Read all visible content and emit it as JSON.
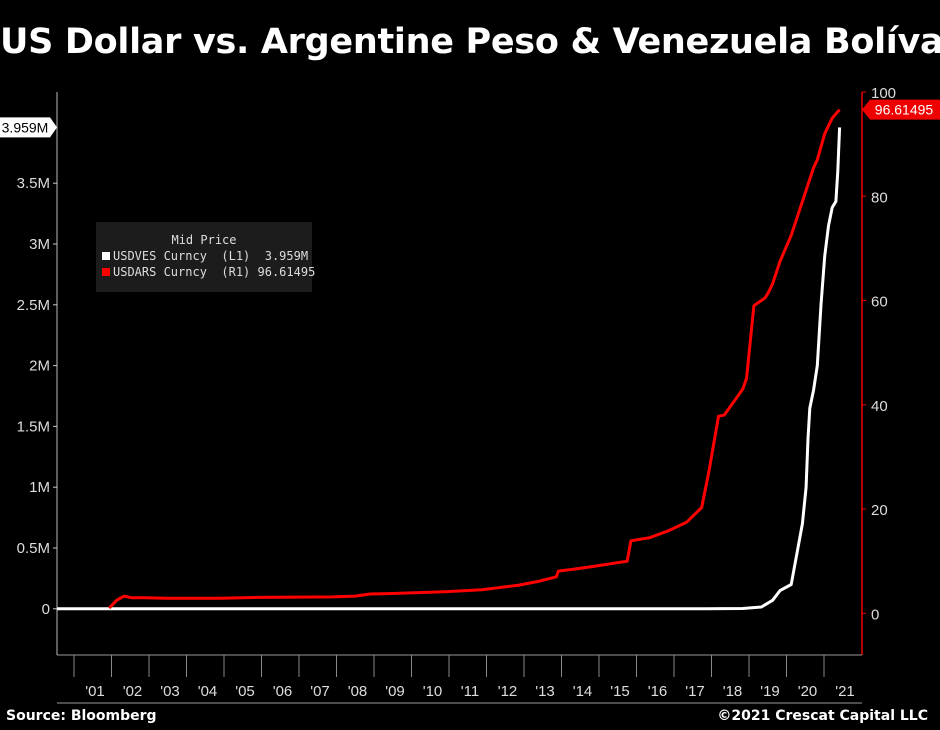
{
  "title": "US Dollar vs. Argentine Peso & Venezuela Bolívar",
  "source": "Source: Bloomberg",
  "copyright": "©2021 Crescat Capital LLC",
  "legend": {
    "header": "Mid Price",
    "items": [
      {
        "label": "USDVES Curncy  (L1)  3.959M",
        "color": "#ffffff"
      },
      {
        "label": "USDARS Curncy  (R1) 96.61495",
        "color": "#ff0000"
      }
    ]
  },
  "badges": {
    "left": "3.959M",
    "right": "96.61495"
  },
  "chart_data": {
    "type": "line",
    "x_tick_labels": [
      "'01",
      "'02",
      "'03",
      "'04",
      "'05",
      "'06",
      "'07",
      "'08",
      "'09",
      "'10",
      "'11",
      "'12",
      "'13",
      "'14",
      "'15",
      "'16",
      "'17",
      "'18",
      "'19",
      "'20",
      "'21"
    ],
    "left_axis": {
      "ticks": [
        0,
        500000,
        1000000,
        1500000,
        2000000,
        2500000,
        3000000,
        3500000
      ],
      "tick_labels": [
        "0",
        "0.5M",
        "1M",
        "1.5M",
        "2M",
        "2.5M",
        "3M",
        "3.5M"
      ],
      "range": [
        -380000,
        4250000
      ]
    },
    "right_axis": {
      "ticks": [
        0,
        20,
        40,
        60,
        80,
        100
      ],
      "tick_labels": [
        "0",
        "20",
        "40",
        "60",
        "80",
        "100"
      ],
      "range": [
        -8,
        100
      ]
    },
    "x_range": [
      2000.6,
      2022.2
    ],
    "series": [
      {
        "name": "USDVES Curncy",
        "axis": "left",
        "color": "#ffffff",
        "x": [
          2000.6,
          2018.0,
          2019.0,
          2019.5,
          2019.8,
          2020.0,
          2020.3,
          2020.45,
          2020.6,
          2020.7,
          2020.75,
          2020.8,
          2020.9,
          2021.0,
          2021.1,
          2021.2,
          2021.3,
          2021.4,
          2021.5,
          2021.55,
          2021.6
        ],
        "values": [
          0,
          0,
          2000,
          15000,
          70000,
          150000,
          200000,
          450000,
          700000,
          1000000,
          1400000,
          1650000,
          1800000,
          2000000,
          2500000,
          2900000,
          3150000,
          3300000,
          3350000,
          3600000,
          3959000
        ]
      },
      {
        "name": "USDARS Curncy",
        "axis": "right",
        "color": "#ff0000",
        "x": [
          2002.0,
          2002.2,
          2002.4,
          2002.6,
          2003.0,
          2003.5,
          2004.0,
          2005.0,
          2006.0,
          2007.0,
          2008.0,
          2008.6,
          2009.0,
          2009.6,
          2010.0,
          2011.0,
          2012.0,
          2013.0,
          2013.5,
          2014.0,
          2014.05,
          2014.5,
          2015.0,
          2015.9,
          2016.0,
          2016.5,
          2017.0,
          2017.5,
          2017.9,
          2018.1,
          2018.35,
          2018.5,
          2018.8,
          2019.0,
          2019.1,
          2019.3,
          2019.6,
          2019.7,
          2019.8,
          2020.0,
          2020.3,
          2020.6,
          2020.9,
          2021.0,
          2021.2,
          2021.4,
          2021.6
        ],
        "values": [
          1,
          2.5,
          3.3,
          3.0,
          3.0,
          2.9,
          2.9,
          2.9,
          3.05,
          3.1,
          3.15,
          3.3,
          3.7,
          3.8,
          3.9,
          4.15,
          4.5,
          5.4,
          6.1,
          7.0,
          8.1,
          8.5,
          9.0,
          10.0,
          13.9,
          14.5,
          15.8,
          17.5,
          20.3,
          27.5,
          37.8,
          38.0,
          41.0,
          43.0,
          45.0,
          59.0,
          60.5,
          61.7,
          63.2,
          67.5,
          72.5,
          79.0,
          85.5,
          87.0,
          92.0,
          95.0,
          96.61495
        ]
      }
    ]
  }
}
